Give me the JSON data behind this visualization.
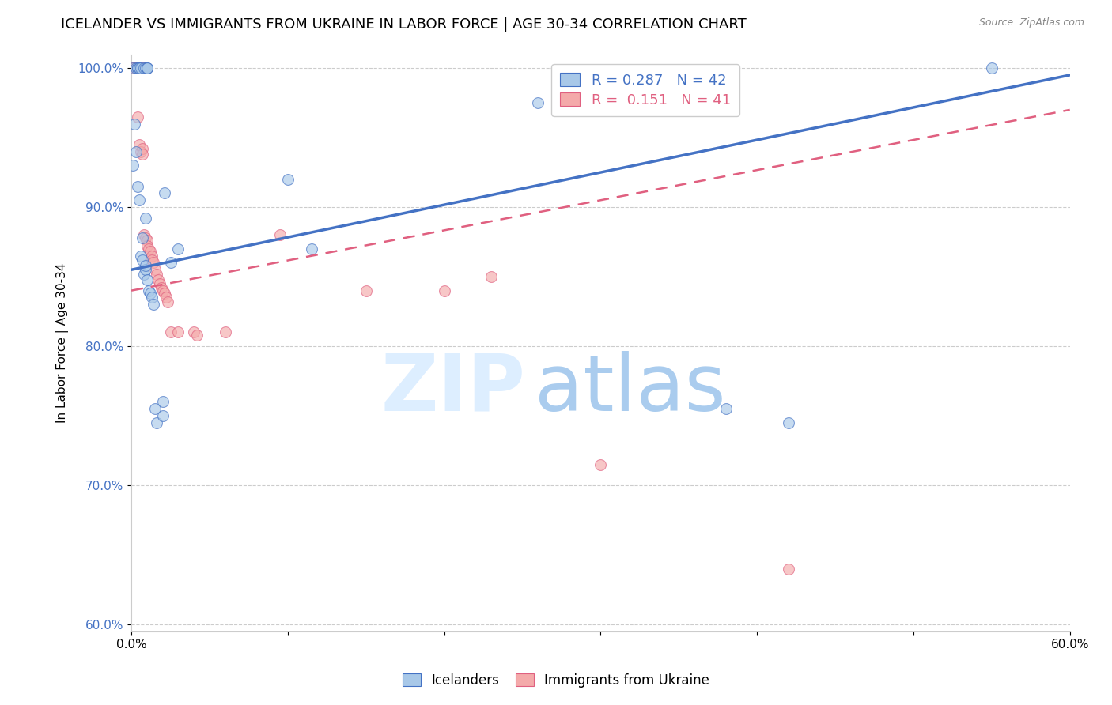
{
  "title": "ICELANDER VS IMMIGRANTS FROM UKRAINE IN LABOR FORCE | AGE 30-34 CORRELATION CHART",
  "source": "Source: ZipAtlas.com",
  "xlabel": "",
  "ylabel": "In Labor Force | Age 30-34",
  "xlim": [
    0.0,
    0.6
  ],
  "ylim": [
    0.595,
    1.01
  ],
  "xticks": [
    0.0,
    0.1,
    0.2,
    0.3,
    0.4,
    0.5,
    0.6
  ],
  "xticklabels": [
    "0.0%",
    "",
    "",
    "",
    "",
    "",
    "60.0%"
  ],
  "yticks": [
    0.6,
    0.7,
    0.8,
    0.9,
    1.0
  ],
  "yticklabels": [
    "60.0%",
    "70.0%",
    "80.0%",
    "90.0%",
    "100.0%"
  ],
  "blue_R": 0.287,
  "blue_N": 42,
  "pink_R": 0.151,
  "pink_N": 41,
  "blue_color": "#A8C8E8",
  "pink_color": "#F4AAAA",
  "blue_line_color": "#4472C4",
  "pink_line_color": "#E06080",
  "blue_scatter": [
    [
      0.001,
      1.0
    ],
    [
      0.003,
      1.0
    ],
    [
      0.004,
      1.0
    ],
    [
      0.004,
      1.0
    ],
    [
      0.005,
      1.0
    ],
    [
      0.005,
      1.0
    ],
    [
      0.006,
      1.0
    ],
    [
      0.008,
      1.0
    ],
    [
      0.009,
      1.0
    ],
    [
      0.01,
      1.0
    ],
    [
      0.01,
      1.0
    ],
    [
      0.01,
      1.0
    ],
    [
      0.002,
      0.96
    ],
    [
      0.003,
      0.94
    ],
    [
      0.001,
      0.93
    ],
    [
      0.004,
      0.915
    ],
    [
      0.021,
      0.91
    ],
    [
      0.005,
      0.905
    ],
    [
      0.1,
      0.92
    ],
    [
      0.03,
      0.87
    ],
    [
      0.006,
      0.865
    ],
    [
      0.007,
      0.862
    ],
    [
      0.007,
      0.878
    ],
    [
      0.009,
      0.892
    ],
    [
      0.025,
      0.86
    ],
    [
      0.115,
      0.87
    ],
    [
      0.008,
      0.852
    ],
    [
      0.009,
      0.855
    ],
    [
      0.009,
      0.858
    ],
    [
      0.01,
      0.848
    ],
    [
      0.011,
      0.84
    ],
    [
      0.012,
      0.838
    ],
    [
      0.013,
      0.835
    ],
    [
      0.014,
      0.83
    ],
    [
      0.015,
      0.755
    ],
    [
      0.016,
      0.745
    ],
    [
      0.02,
      0.75
    ],
    [
      0.02,
      0.76
    ],
    [
      0.26,
      0.975
    ],
    [
      0.38,
      0.755
    ],
    [
      0.42,
      0.745
    ],
    [
      0.55,
      1.0
    ]
  ],
  "pink_scatter": [
    [
      0.001,
      1.0
    ],
    [
      0.002,
      1.0
    ],
    [
      0.003,
      1.0
    ],
    [
      0.004,
      1.0
    ],
    [
      0.005,
      1.0
    ],
    [
      0.006,
      1.0
    ],
    [
      0.008,
      1.0
    ],
    [
      0.004,
      0.965
    ],
    [
      0.005,
      0.945
    ],
    [
      0.006,
      0.94
    ],
    [
      0.007,
      0.942
    ],
    [
      0.007,
      0.938
    ],
    [
      0.008,
      0.88
    ],
    [
      0.009,
      0.878
    ],
    [
      0.01,
      0.876
    ],
    [
      0.01,
      0.872
    ],
    [
      0.011,
      0.87
    ],
    [
      0.012,
      0.868
    ],
    [
      0.013,
      0.865
    ],
    [
      0.013,
      0.862
    ],
    [
      0.014,
      0.86
    ],
    [
      0.015,
      0.855
    ],
    [
      0.016,
      0.852
    ],
    [
      0.017,
      0.848
    ],
    [
      0.018,
      0.845
    ],
    [
      0.019,
      0.842
    ],
    [
      0.02,
      0.84
    ],
    [
      0.021,
      0.838
    ],
    [
      0.022,
      0.835
    ],
    [
      0.023,
      0.832
    ],
    [
      0.025,
      0.81
    ],
    [
      0.03,
      0.81
    ],
    [
      0.04,
      0.81
    ],
    [
      0.042,
      0.808
    ],
    [
      0.06,
      0.81
    ],
    [
      0.095,
      0.88
    ],
    [
      0.15,
      0.84
    ],
    [
      0.2,
      0.84
    ],
    [
      0.23,
      0.85
    ],
    [
      0.3,
      0.715
    ],
    [
      0.42,
      0.64
    ]
  ],
  "blue_trendline": [
    [
      0.0,
      0.855
    ],
    [
      0.6,
      0.995
    ]
  ],
  "pink_trendline": [
    [
      0.0,
      0.84
    ],
    [
      0.6,
      0.97
    ]
  ],
  "title_fontsize": 13,
  "axis_label_fontsize": 11,
  "tick_fontsize": 11,
  "marker_size": 100
}
